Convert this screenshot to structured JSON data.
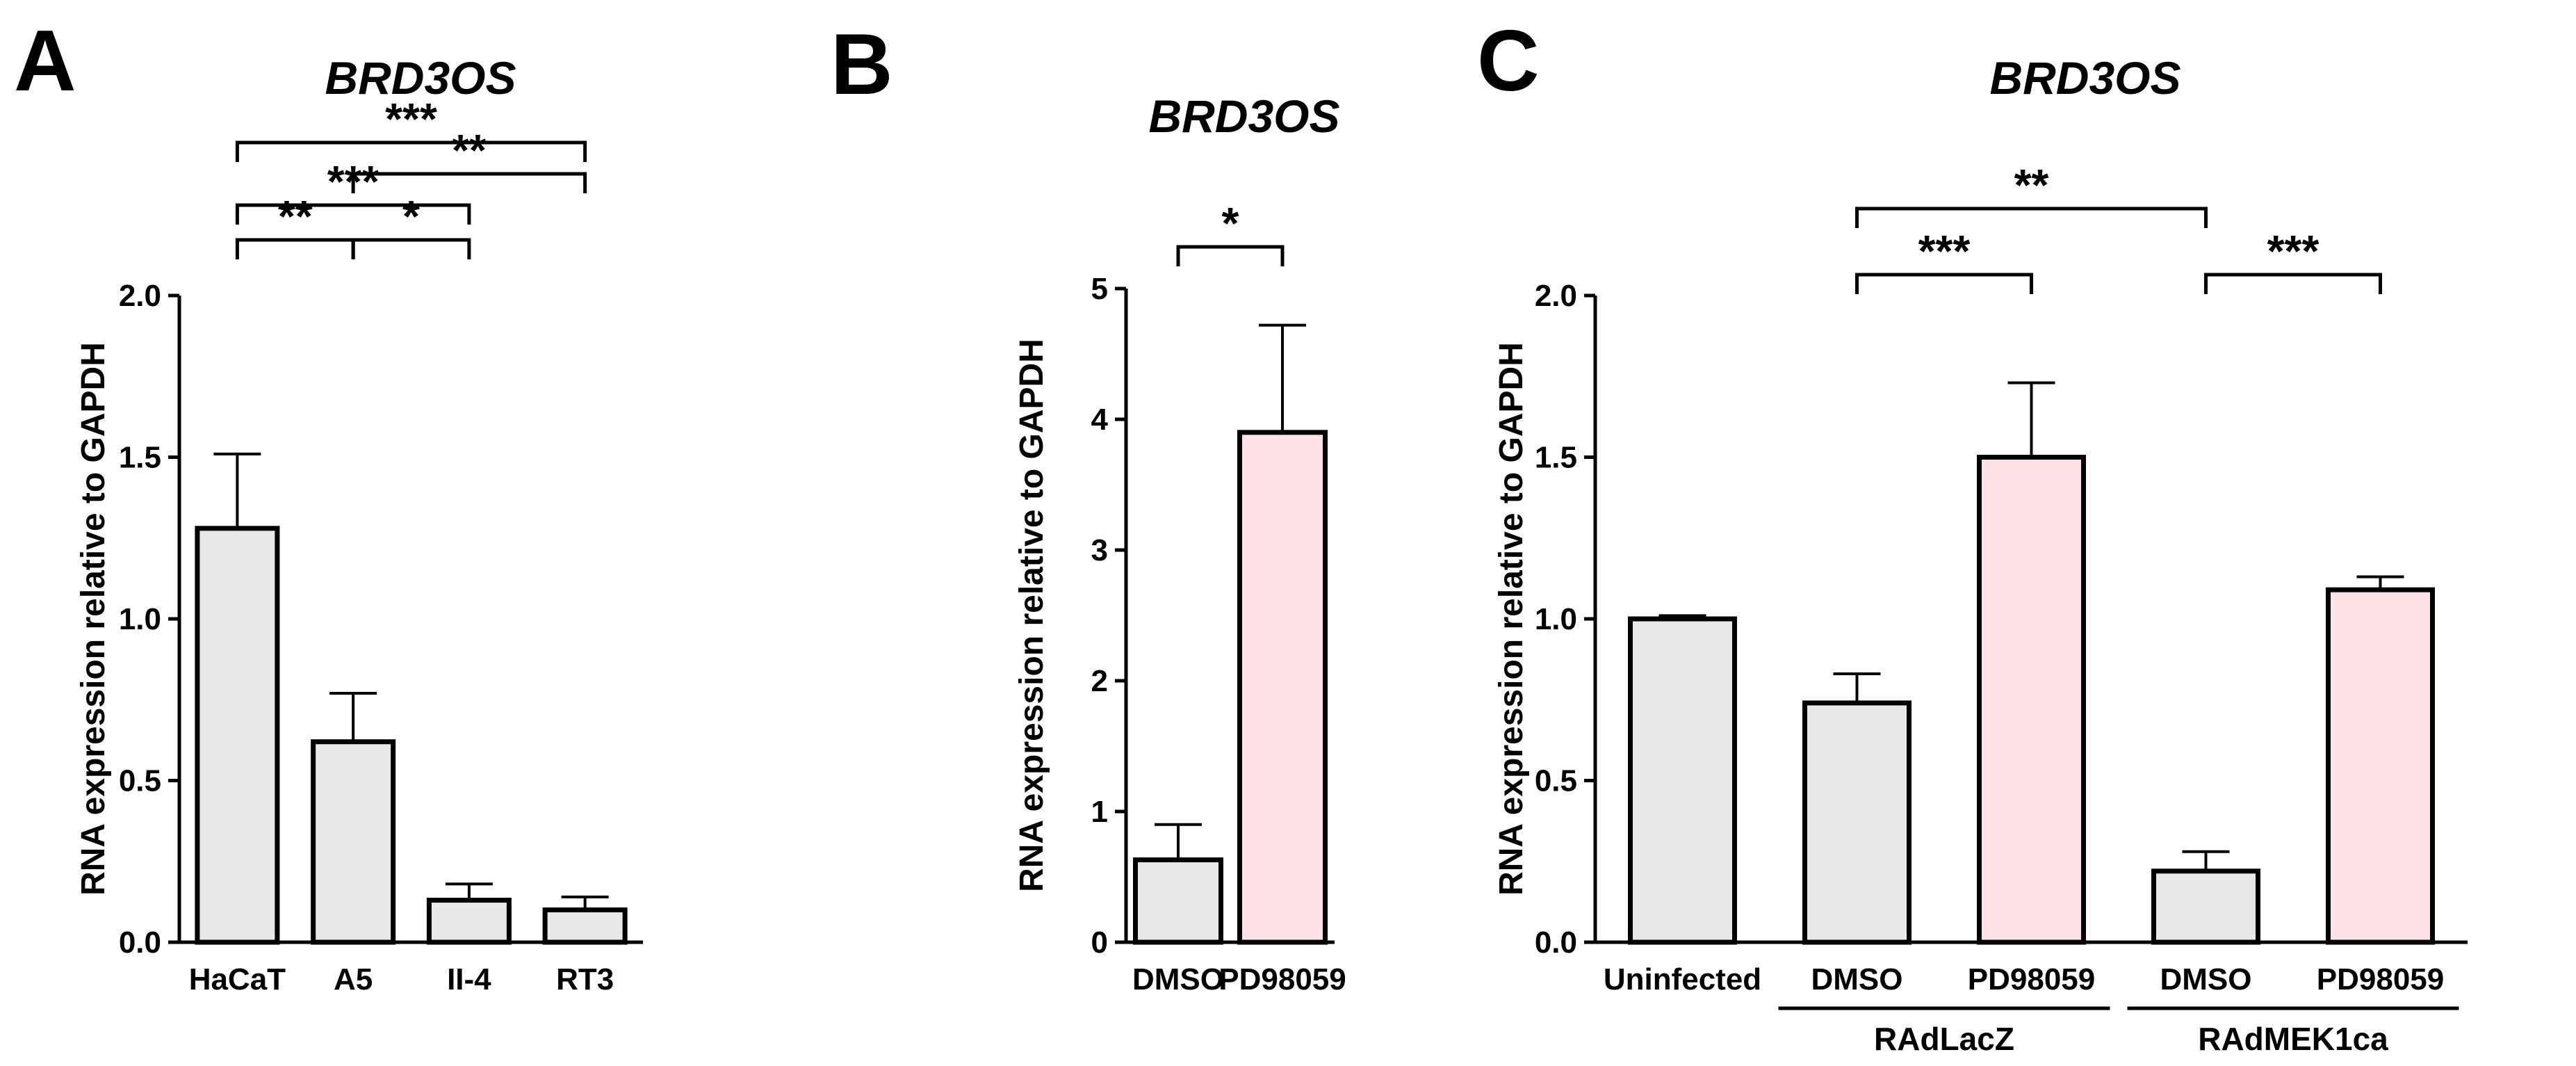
{
  "chart_data": [
    {
      "panel": "A",
      "type": "bar",
      "title": "BRD3OS",
      "ylabel": "RNA expression relative to GAPDH",
      "xlabel": "",
      "categories": [
        "HaCaT",
        "A5",
        "II-4",
        "RT3"
      ],
      "values": [
        1.28,
        0.62,
        0.13,
        0.1
      ],
      "errors": [
        0.23,
        0.15,
        0.05,
        0.04
      ],
      "bar_colors": [
        "#e8e8e8",
        "#e8e8e8",
        "#e8e8e8",
        "#e8e8e8"
      ],
      "ylim": [
        0,
        2.0
      ],
      "yticks": [
        "0.0",
        "0.5",
        "1.0",
        "1.5",
        "2.0"
      ],
      "significance": [
        {
          "from": 0,
          "to": 3,
          "label": "***"
        },
        {
          "from": 1,
          "to": 3,
          "label": "**"
        },
        {
          "from": 0,
          "to": 2,
          "label": "***"
        },
        {
          "from": 0,
          "to": 1,
          "label": "**"
        },
        {
          "from": 1,
          "to": 2,
          "label": "*"
        }
      ]
    },
    {
      "panel": "B",
      "type": "bar",
      "title": "BRD3OS",
      "ylabel": "RNA expression relative to GAPDH",
      "xlabel": "",
      "categories": [
        "DMSO",
        "PD98059"
      ],
      "values": [
        0.63,
        3.9
      ],
      "errors": [
        0.27,
        0.82
      ],
      "bar_colors": [
        "#e8e8e8",
        "#fde2e6"
      ],
      "ylim": [
        0,
        5
      ],
      "yticks": [
        "0",
        "1",
        "2",
        "3",
        "4",
        "5"
      ],
      "significance": [
        {
          "from": 0,
          "to": 1,
          "label": "*"
        }
      ]
    },
    {
      "panel": "C",
      "type": "bar",
      "title": "BRD3OS",
      "ylabel": "RNA expression relative to GAPDH",
      "xlabel": "",
      "categories": [
        "Uninfected",
        "DMSO",
        "PD98059",
        "DMSO",
        "PD98059"
      ],
      "values": [
        1.0,
        0.74,
        1.5,
        0.22,
        1.09
      ],
      "errors": [
        0.01,
        0.09,
        0.23,
        0.06,
        0.04
      ],
      "bar_colors": [
        "#e8e8e8",
        "#e8e8e8",
        "#fde2e6",
        "#e8e8e8",
        "#fde2e6"
      ],
      "ylim": [
        0,
        2.0
      ],
      "yticks": [
        "0.0",
        "0.5",
        "1.0",
        "1.5",
        "2.0"
      ],
      "groups": [
        {
          "label": "RAdLacZ",
          "from": 1,
          "to": 2
        },
        {
          "label": "RAdMEK1ca",
          "from": 3,
          "to": 4
        }
      ],
      "significance": [
        {
          "from": 1,
          "to": 3,
          "label": "**"
        },
        {
          "from": 1,
          "to": 2,
          "label": "***"
        },
        {
          "from": 3,
          "to": 4,
          "label": "***"
        }
      ]
    }
  ]
}
